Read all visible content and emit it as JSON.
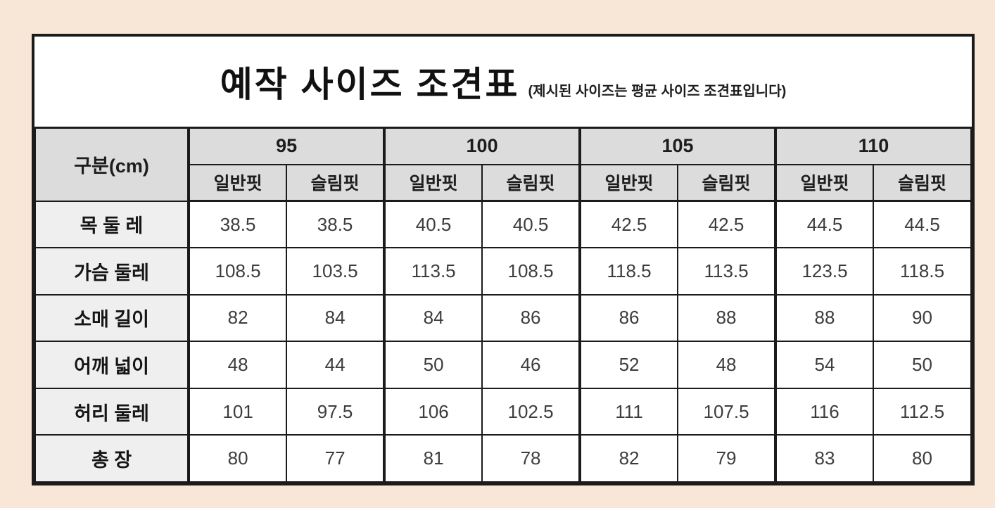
{
  "table": {
    "title": "예작 사이즈 조견표",
    "subtitle": "(제시된 사이즈는 평균 사이즈 조견표입니다)",
    "unit_header": "구분(cm)",
    "size_groups": [
      "95",
      "100",
      "105",
      "110"
    ],
    "fit_labels": [
      "일반핏",
      "슬림핏"
    ],
    "rows": [
      {
        "label": "목 둘 레",
        "values": [
          "38.5",
          "38.5",
          "40.5",
          "40.5",
          "42.5",
          "42.5",
          "44.5",
          "44.5"
        ]
      },
      {
        "label": "가슴 둘레",
        "values": [
          "108.5",
          "103.5",
          "113.5",
          "108.5",
          "118.5",
          "113.5",
          "123.5",
          "118.5"
        ]
      },
      {
        "label": "소매 길이",
        "values": [
          "82",
          "84",
          "84",
          "86",
          "86",
          "88",
          "88",
          "90"
        ]
      },
      {
        "label": "어깨 넓이",
        "values": [
          "48",
          "44",
          "50",
          "46",
          "52",
          "48",
          "54",
          "50"
        ]
      },
      {
        "label": "허리 둘레",
        "values": [
          "101",
          "97.5",
          "106",
          "102.5",
          "111",
          "107.5",
          "116",
          "112.5"
        ]
      },
      {
        "label": "총 장",
        "values": [
          "80",
          "77",
          "81",
          "78",
          "82",
          "79",
          "83",
          "80"
        ]
      }
    ],
    "colors": {
      "page_bg": "#f8e7d7",
      "header_bg": "#dcdcdc",
      "label_bg": "#efefef",
      "border": "#1b1b1b"
    }
  }
}
